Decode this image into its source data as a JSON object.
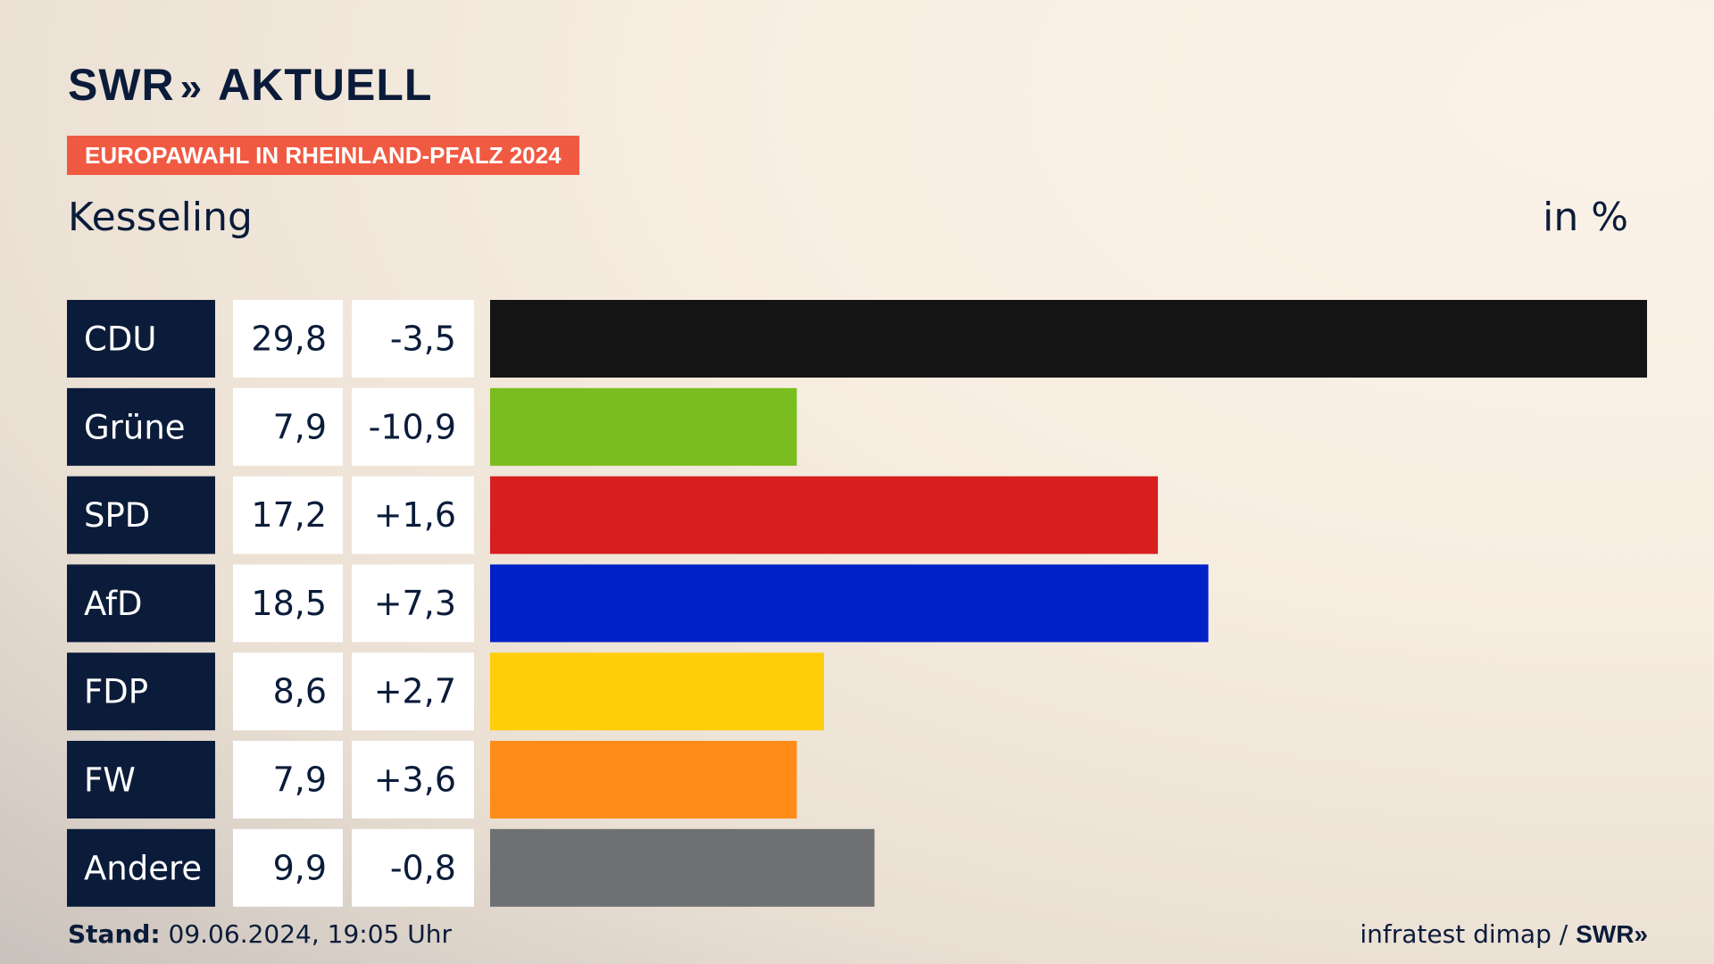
{
  "header": {
    "logo": "SWR",
    "logo_chevrons": "»",
    "logo_suffix": "AKTUELL",
    "tag": "EUROPAWAHL IN RHEINLAND-PFALZ 2024",
    "place": "Kesseling",
    "unit": "in %"
  },
  "colors": {
    "accent": "#f15a42",
    "navy": "#0b1c3a"
  },
  "chart_data": {
    "type": "bar",
    "orientation": "horizontal",
    "title": "Kesseling",
    "unit": "in %",
    "categories": [
      "CDU",
      "Grüne",
      "SPD",
      "AfD",
      "FDP",
      "FW",
      "Andere"
    ],
    "values": [
      29.8,
      7.9,
      17.2,
      18.5,
      8.6,
      7.9,
      9.9
    ],
    "value_labels": [
      "29,8",
      "7,9",
      "17,2",
      "18,5",
      "8,6",
      "7,9",
      "9,9"
    ],
    "change_labels": [
      "-3,5",
      "-10,9",
      "+1,6",
      "+7,3",
      "+2,7",
      "+3,6",
      "-0,8"
    ],
    "changes": [
      -3.5,
      -10.9,
      1.6,
      7.3,
      2.7,
      3.6,
      -0.8
    ],
    "bar_colors": [
      "#141414",
      "#7abd1e",
      "#d71f20",
      "#0020c8",
      "#ffce0a",
      "#ff8c18",
      "#6f7072"
    ],
    "xlim": [
      0,
      29.8
    ]
  },
  "footer": {
    "stand_label": "Stand:",
    "stand_value": "09.06.2024, 19:05 Uhr",
    "source": "infratest dimap /",
    "source_logo": "SWR",
    "source_chevrons": "»"
  }
}
